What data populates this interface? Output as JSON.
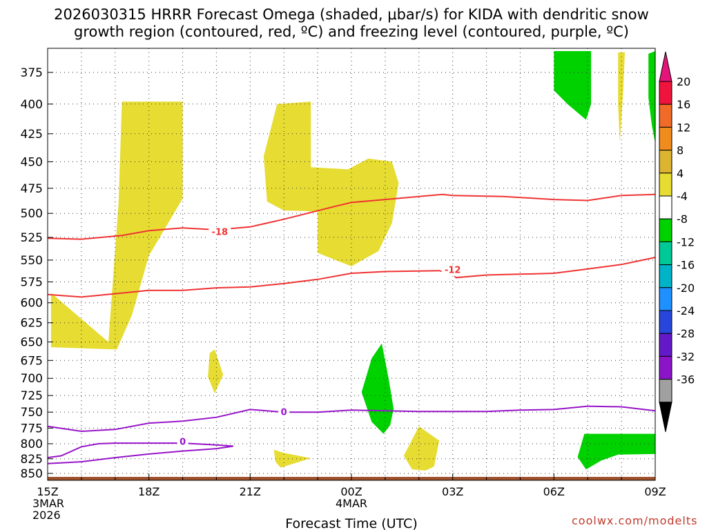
{
  "chart_data": {
    "type": "heatmap",
    "title_line1": "2026030315 HRRR Forecast Omega (shaded, μbar/s) for KIDA with dendritic snow",
    "title_line2": "growth region (contoured, red, ºC) and freezing level (contoured, purple, ºC)",
    "xlabel": "Forecast Time (UTC)",
    "credit": "coolwx.com/modelts",
    "x_range_hours": [
      0,
      18
    ],
    "x_ticks": [
      {
        "hour": 0,
        "label": "15Z"
      },
      {
        "hour": 3,
        "label": "18Z"
      },
      {
        "hour": 6,
        "label": "21Z"
      },
      {
        "hour": 9,
        "label": "00Z"
      },
      {
        "hour": 12,
        "label": "03Z"
      },
      {
        "hour": 15,
        "label": "06Z"
      },
      {
        "hour": 18,
        "label": "09Z"
      }
    ],
    "x_date_labels": [
      {
        "hour": 0,
        "lines": [
          "3MAR",
          "2026"
        ]
      },
      {
        "hour": 9,
        "lines": [
          "4MAR"
        ]
      }
    ],
    "y_range_hpa": [
      357,
      862
    ],
    "y_ticks": [
      375,
      400,
      425,
      450,
      475,
      500,
      525,
      550,
      575,
      600,
      625,
      650,
      675,
      700,
      725,
      750,
      775,
      800,
      825,
      850
    ],
    "colorbar": {
      "labels": [
        "20",
        "16",
        "12",
        "8",
        "4",
        "-4",
        "-8",
        "-12",
        "-16",
        "-20",
        "-24",
        "-28",
        "-32",
        "-36"
      ],
      "colors": [
        "#f0143c",
        "#f06a28",
        "#f08c1e",
        "#dcb432",
        "#e6dc32",
        "#ffffff",
        "#00d200",
        "#00c896",
        "#00b4c8",
        "#1e90ff",
        "#2846dc",
        "#6419c8",
        "#8c14c8",
        "#a0a0a0"
      ],
      "top_arrow_color": "#e6147a",
      "bottom_arrow_color": "#000000"
    },
    "shaded_regions": [
      {
        "color": "#e6dc32",
        "points": [
          [
            1.8,
            650
          ],
          [
            2.1,
            490
          ],
          [
            2.2,
            398
          ],
          [
            4.0,
            398
          ],
          [
            4.0,
            485
          ],
          [
            3.0,
            545
          ],
          [
            2.5,
            615
          ],
          [
            2.05,
            660
          ],
          [
            0.1,
            657
          ],
          [
            0.1,
            588
          ]
        ]
      },
      {
        "color": "#e6dc32",
        "points": [
          [
            6.8,
            400
          ],
          [
            7.8,
            398
          ],
          [
            7.8,
            455
          ],
          [
            8.9,
            457
          ],
          [
            9.5,
            447
          ],
          [
            10.2,
            450
          ],
          [
            10.4,
            470
          ],
          [
            10.2,
            510
          ],
          [
            9.8,
            540
          ],
          [
            9.0,
            557
          ],
          [
            8.0,
            542
          ],
          [
            8.0,
            498
          ],
          [
            7.0,
            497
          ],
          [
            6.5,
            488
          ],
          [
            6.4,
            445
          ]
        ]
      },
      {
        "color": "#e6dc32",
        "points": [
          [
            4.95,
            660
          ],
          [
            5.2,
            695
          ],
          [
            4.95,
            722
          ],
          [
            4.75,
            698
          ],
          [
            4.8,
            665
          ]
        ]
      },
      {
        "color": "#e6dc32",
        "points": [
          [
            6.7,
            810
          ],
          [
            7.0,
            815
          ],
          [
            7.8,
            824
          ],
          [
            6.9,
            840
          ],
          [
            6.75,
            830
          ]
        ]
      },
      {
        "color": "#e6dc32",
        "points": [
          [
            11.0,
            772
          ],
          [
            11.6,
            795
          ],
          [
            11.45,
            838
          ],
          [
            11.2,
            845
          ],
          [
            10.8,
            843
          ],
          [
            10.55,
            820
          ]
        ]
      },
      {
        "color": "#e6dc32",
        "points": [
          [
            16.9,
            360
          ],
          [
            17.1,
            360
          ],
          [
            17.05,
            390
          ],
          [
            16.95,
            432
          ],
          [
            16.9,
            400
          ]
        ]
      },
      {
        "color": "#00d200",
        "points": [
          [
            9.6,
            672
          ],
          [
            9.9,
            652
          ],
          [
            10.1,
            700
          ],
          [
            10.25,
            745
          ],
          [
            10.15,
            770
          ],
          [
            9.95,
            784
          ],
          [
            9.6,
            765
          ],
          [
            9.3,
            720
          ]
        ]
      },
      {
        "color": "#00d200",
        "points": [
          [
            15.0,
            359
          ],
          [
            16.1,
            359
          ],
          [
            16.1,
            400
          ],
          [
            15.95,
            413
          ],
          [
            15.4,
            400
          ],
          [
            15.0,
            389
          ]
        ]
      },
      {
        "color": "#00d200",
        "points": [
          [
            17.8,
            361
          ],
          [
            18.0,
            359
          ],
          [
            18.0,
            433
          ],
          [
            17.9,
            418
          ],
          [
            17.8,
            395
          ]
        ]
      },
      {
        "color": "#00d200",
        "points": [
          [
            15.9,
            784
          ],
          [
            18.0,
            784
          ],
          [
            18.0,
            817
          ],
          [
            16.9,
            818
          ],
          [
            16.4,
            828
          ],
          [
            15.95,
            843
          ],
          [
            15.7,
            822
          ]
        ]
      }
    ],
    "contours": [
      {
        "label": "-18",
        "color": "#f03232",
        "label_at": [
          5.1,
          520
        ],
        "points": [
          [
            0,
            526
          ],
          [
            1.0,
            527
          ],
          [
            2.2,
            523
          ],
          [
            3.0,
            518
          ],
          [
            4.0,
            515
          ],
          [
            5.0,
            517
          ],
          [
            6.0,
            514
          ],
          [
            7.0,
            506
          ],
          [
            8.5,
            493
          ],
          [
            9.0,
            489
          ],
          [
            10.0,
            486
          ],
          [
            11.7,
            481
          ],
          [
            12.0,
            482
          ],
          [
            13.5,
            483
          ],
          [
            15.0,
            486
          ],
          [
            16.0,
            487
          ],
          [
            17.0,
            482
          ],
          [
            18.0,
            481
          ]
        ]
      },
      {
        "label": "-12",
        "color": "#f03232",
        "label_at": [
          12.0,
          562
        ],
        "points": [
          [
            0,
            590
          ],
          [
            1.0,
            593
          ],
          [
            2.0,
            589
          ],
          [
            3.0,
            585
          ],
          [
            4.0,
            585
          ],
          [
            5.0,
            582
          ],
          [
            6.0,
            581
          ],
          [
            7.0,
            577
          ],
          [
            8.0,
            572
          ],
          [
            9.0,
            565
          ],
          [
            10.0,
            563
          ],
          [
            11.6,
            562
          ],
          [
            12.0,
            566
          ],
          [
            12.1,
            570
          ],
          [
            13.0,
            567
          ],
          [
            14.0,
            566
          ],
          [
            15.0,
            565
          ],
          [
            16.0,
            560
          ],
          [
            17.0,
            555
          ],
          [
            18.0,
            547
          ]
        ]
      },
      {
        "label": "0",
        "color": "#9614c8",
        "label_at": [
          7.0,
          751
        ],
        "points": [
          [
            0,
            772
          ],
          [
            1.0,
            780
          ],
          [
            2.0,
            777
          ],
          [
            3.0,
            767
          ],
          [
            4.0,
            764
          ],
          [
            5.0,
            758
          ],
          [
            6.0,
            746
          ],
          [
            7.0,
            750
          ],
          [
            8.0,
            750
          ],
          [
            9.0,
            747
          ],
          [
            10.0,
            748
          ],
          [
            11.0,
            749
          ],
          [
            12.0,
            749
          ],
          [
            13.0,
            749
          ],
          [
            14.0,
            747
          ],
          [
            15.0,
            746
          ],
          [
            16.0,
            741
          ],
          [
            17.0,
            742
          ],
          [
            18.0,
            748
          ]
        ]
      },
      {
        "label": "0",
        "color": "#9614c8",
        "label_at": [
          4.0,
          798
        ],
        "points": [
          [
            0,
            823
          ],
          [
            0.4,
            820
          ],
          [
            1.0,
            805
          ],
          [
            1.5,
            800
          ],
          [
            2.0,
            799
          ],
          [
            3.0,
            799
          ],
          [
            4.0,
            799
          ],
          [
            5.0,
            802
          ],
          [
            5.5,
            804
          ],
          [
            5.0,
            808
          ],
          [
            4.0,
            812
          ],
          [
            3.0,
            817
          ],
          [
            2.0,
            823
          ],
          [
            1.0,
            830
          ],
          [
            0,
            833
          ]
        ]
      }
    ],
    "ground": {
      "color": "#a0522d",
      "pressure": 856
    }
  }
}
